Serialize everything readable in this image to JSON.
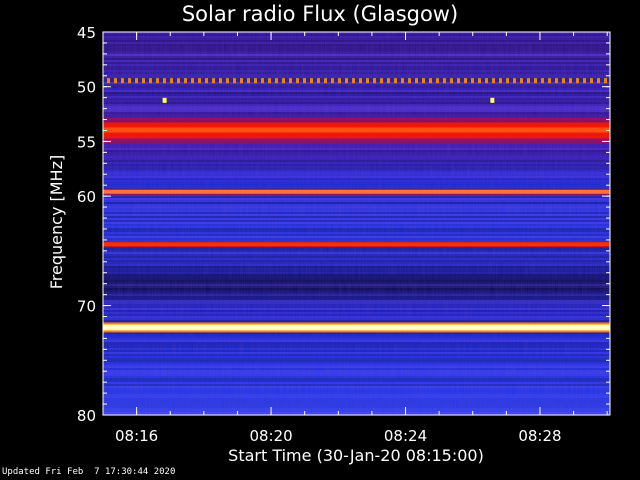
{
  "title": "Solar radio Flux (Glasgow)",
  "footer": "Updated Fri Feb  7 17:30:44 2020",
  "chart_data": {
    "type": "heatmap",
    "title": "Solar radio Flux (Glasgow)",
    "xlabel": "Start Time (30-Jan-20 08:15:00)",
    "ylabel": "Frequency [MHz]",
    "x_range": [
      "08:15:00",
      "08:30:05"
    ],
    "y_range": [
      45,
      80
    ],
    "y_axis_inverted": true,
    "x_ticks": [
      {
        "value": "08:16",
        "label": "08:16"
      },
      {
        "value": "08:20",
        "label": "08:20"
      },
      {
        "value": "08:24",
        "label": "08:24"
      },
      {
        "value": "08:28",
        "label": "08:28"
      }
    ],
    "y_ticks": [
      {
        "value": 45,
        "label": "45"
      },
      {
        "value": 50,
        "label": "50"
      },
      {
        "value": 55,
        "label": "55"
      },
      {
        "value": 60,
        "label": "60"
      },
      {
        "value": 70,
        "label": "70"
      },
      {
        "value": 80,
        "label": "80"
      }
    ],
    "colorscale": [
      "#000000",
      "#1a0070",
      "#0000ff",
      "#7a00c0",
      "#ff0000",
      "#ff8000",
      "#ffff00",
      "#ffffff"
    ],
    "emission_bands": [
      {
        "frequency_mhz": 49.4,
        "intensity": "dashed",
        "color": "#ff8000"
      },
      {
        "frequency_mhz": 54.0,
        "intensity": "strong",
        "color": "#ff1a00"
      },
      {
        "frequency_mhz": 59.6,
        "intensity": "strong",
        "color": "#ff7040"
      },
      {
        "frequency_mhz": 64.4,
        "intensity": "strong",
        "color": "#ff3000"
      },
      {
        "frequency_mhz": 72.0,
        "intensity": "very strong",
        "color": "#ffffa0"
      }
    ],
    "point_features": [
      {
        "time": "08:16:50",
        "frequency_mhz": 51.2,
        "color": "#ffff60"
      },
      {
        "time": "08:26:35",
        "frequency_mhz": 51.2,
        "color": "#ffff60"
      }
    ]
  }
}
